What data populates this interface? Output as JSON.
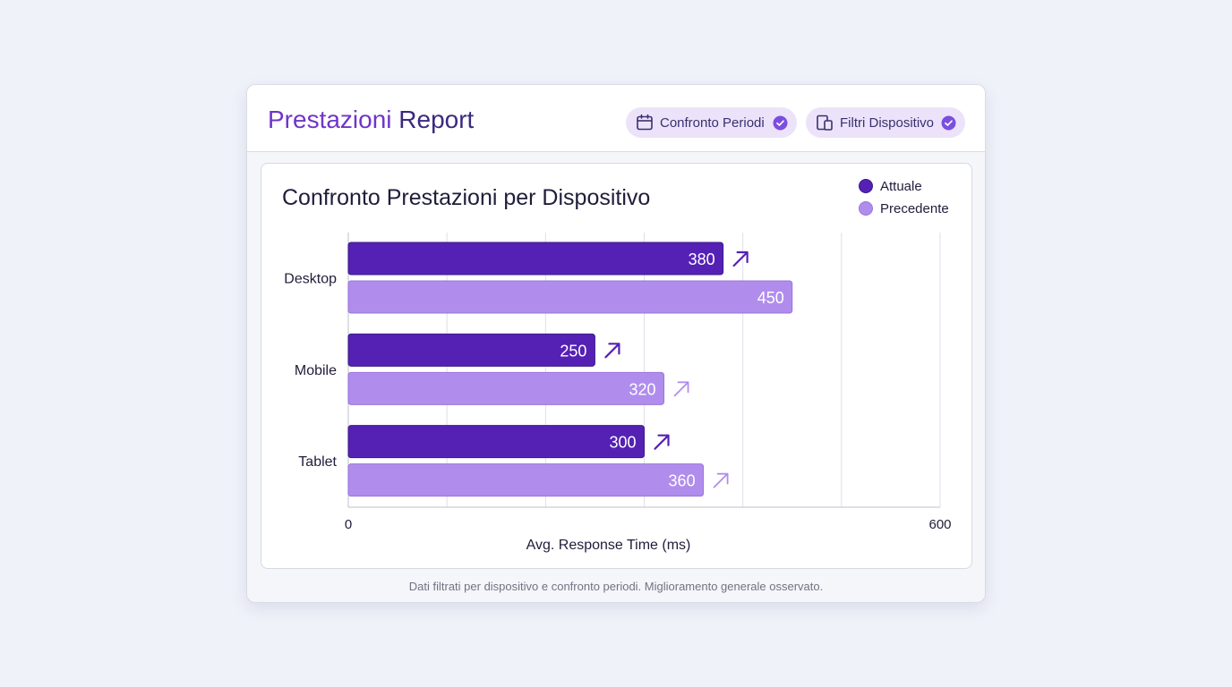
{
  "header": {
    "title_accent": "Prestazioni",
    "title_rest": "Report",
    "chips": [
      {
        "label": "Confronto Periodi",
        "icon": "calendar-icon",
        "checked": true
      },
      {
        "label": "Filtri Dispositivo",
        "icon": "devices-icon",
        "checked": true
      }
    ]
  },
  "colors": {
    "current": "#5521b5",
    "previous": "#b08ded",
    "trend_current": "#5521b5",
    "trend_previous": "#b08ded",
    "grid": "#dedee8",
    "accent": "#7035c8"
  },
  "chart_data": {
    "type": "bar",
    "orientation": "horizontal",
    "title": "Confronto Prestazioni per Dispositivo",
    "categories": [
      "Desktop",
      "Mobile",
      "Tablet"
    ],
    "series": [
      {
        "name": "Attuale",
        "values": [
          380,
          250,
          300
        ]
      },
      {
        "name": "Precedente",
        "values": [
          450,
          320,
          360
        ]
      }
    ],
    "trend_markers": {
      "Attuale": [
        true,
        true,
        true
      ],
      "Precedente": [
        false,
        true,
        true
      ]
    },
    "xlabel": "Avg. Response Time (ms)",
    "ylabel": "",
    "xlim": [
      0,
      600
    ],
    "x_tick_labels": [
      "0",
      "600"
    ],
    "grid": true,
    "legend": "top-right"
  },
  "footer": {
    "note": "Dati filtrati per dispositivo e confronto periodi. Miglioramento generale osservato."
  }
}
